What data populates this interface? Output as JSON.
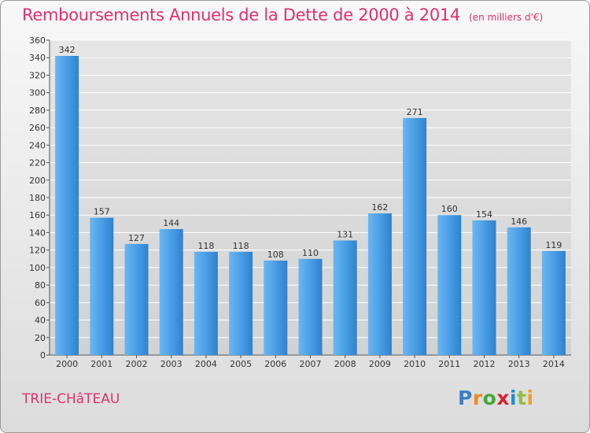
{
  "title": "Remboursements Annuels de la Dette de 2000 à 2014",
  "unit_note": "(en milliers d'€)",
  "commune": "TRIE-CHâTEAU",
  "logo": {
    "letters": [
      "P",
      "r",
      "o",
      "x",
      "i",
      "t",
      "i"
    ],
    "colors": [
      "#3b7fc4",
      "#f08a1c",
      "#44a83a",
      "#d9232f",
      "#1a8fd0",
      "#8dc03f",
      "#f0a020"
    ]
  },
  "colors": {
    "bar_light": "#5aaaee",
    "bar_dark": "#2a78bd",
    "title": "#e0306f",
    "grid": "#ffffff"
  },
  "chart_data": {
    "type": "bar",
    "categories": [
      "2000",
      "2001",
      "2002",
      "2003",
      "2004",
      "2005",
      "2006",
      "2007",
      "2008",
      "2009",
      "2010",
      "2011",
      "2012",
      "2013",
      "2014"
    ],
    "values": [
      342,
      157,
      127,
      144,
      118,
      118,
      108,
      110,
      131,
      162,
      271,
      160,
      154,
      146,
      119
    ],
    "ylim": [
      0,
      360
    ],
    "ytick_step": 20,
    "grid": true
  }
}
